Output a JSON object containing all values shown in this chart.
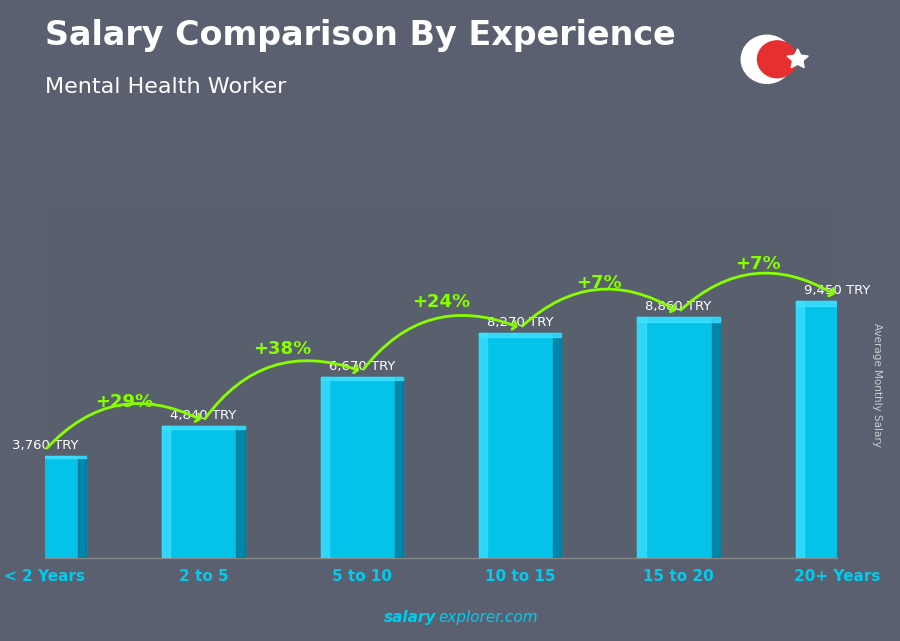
{
  "title": "Salary Comparison By Experience",
  "subtitle": "Mental Health Worker",
  "categories": [
    "< 2 Years",
    "2 to 5",
    "5 to 10",
    "10 to 15",
    "15 to 20",
    "20+ Years"
  ],
  "values": [
    3760,
    4840,
    6670,
    8270,
    8860,
    9450
  ],
  "value_labels": [
    "3,760 TRY",
    "4,840 TRY",
    "6,670 TRY",
    "8,270 TRY",
    "8,860 TRY",
    "9,450 TRY"
  ],
  "pct_labels": [
    "+29%",
    "+38%",
    "+24%",
    "+7%",
    "+7%"
  ],
  "bar_face_color": "#00c8f0",
  "bar_side_color": "#006080",
  "bar_top_color": "#00b0d8",
  "bar_highlight_color": "#40e0ff",
  "ylabel": "Average Monthly Salary",
  "footer_bold": "salary",
  "footer_normal": "explorer.com",
  "ylim": [
    0,
    13000
  ],
  "title_color": "#ffffff",
  "subtitle_color": "#ffffff",
  "label_color": "#ffffff",
  "pct_color": "#88ff00",
  "tick_color": "#00ccee",
  "bg_color": "#5a6070",
  "flag_bg": "#e63030",
  "arc_color": "#88ff00"
}
